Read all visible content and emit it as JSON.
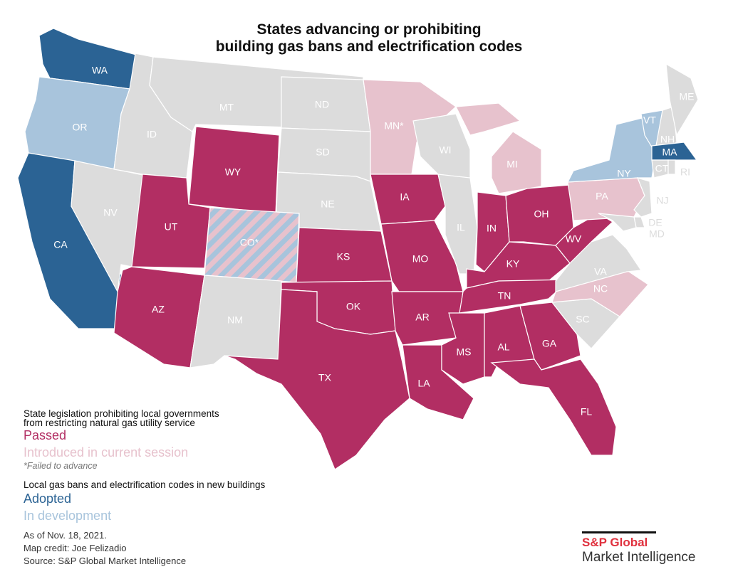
{
  "title": [
    "States advancing or prohibiting",
    "building gas bans and electrification codes"
  ],
  "colors": {
    "passed": "#b22e63",
    "introduced": "#e7c2cd",
    "adopted": "#2b6394",
    "in_development": "#a8c4dc",
    "none": "#dcdcdc"
  },
  "legend": {
    "group1_heading": [
      "State legislation prohibiting local governments",
      "from restricting natural gas utility service"
    ],
    "passed": "Passed",
    "introduced": "Introduced in current session",
    "failed_note": "*Failed to advance",
    "group2_heading": "Local gas bans and electrification codes in new buildings",
    "adopted": "Adopted",
    "in_development": "In development"
  },
  "footer": [
    "As of Nov. 18, 2021.",
    "Map credit: Joe Felizadio",
    "Source: S&P Global Market Intelligence"
  ],
  "logo": {
    "line1": "S&P Global",
    "line2": "Market Intelligence"
  },
  "states": [
    {
      "label": "WA",
      "status": "adopted"
    },
    {
      "label": "OR",
      "status": "in_development"
    },
    {
      "label": "CA",
      "status": "adopted"
    },
    {
      "label": "NV",
      "status": "none"
    },
    {
      "label": "ID",
      "status": "none"
    },
    {
      "label": "MT",
      "status": "none"
    },
    {
      "label": "WY",
      "status": "passed"
    },
    {
      "label": "UT",
      "status": "passed"
    },
    {
      "label": "CO*",
      "status": "introduced_and_in_development"
    },
    {
      "label": "AZ",
      "status": "passed"
    },
    {
      "label": "NM",
      "status": "none"
    },
    {
      "label": "ND",
      "status": "none"
    },
    {
      "label": "SD",
      "status": "none"
    },
    {
      "label": "NE",
      "status": "none"
    },
    {
      "label": "KS",
      "status": "passed"
    },
    {
      "label": "OK",
      "status": "passed"
    },
    {
      "label": "TX",
      "status": "passed"
    },
    {
      "label": "MN*",
      "status": "introduced"
    },
    {
      "label": "IA",
      "status": "passed"
    },
    {
      "label": "MO",
      "status": "passed"
    },
    {
      "label": "AR",
      "status": "passed"
    },
    {
      "label": "LA",
      "status": "passed"
    },
    {
      "label": "WI",
      "status": "none"
    },
    {
      "label": "MI",
      "status": "introduced"
    },
    {
      "label": "IL",
      "status": "none"
    },
    {
      "label": "IN",
      "status": "passed"
    },
    {
      "label": "OH",
      "status": "passed"
    },
    {
      "label": "KY",
      "status": "passed"
    },
    {
      "label": "TN",
      "status": "passed"
    },
    {
      "label": "MS",
      "status": "passed"
    },
    {
      "label": "AL",
      "status": "passed"
    },
    {
      "label": "GA",
      "status": "passed"
    },
    {
      "label": "FL",
      "status": "passed"
    },
    {
      "label": "SC",
      "status": "none"
    },
    {
      "label": "NC",
      "status": "introduced"
    },
    {
      "label": "VA",
      "status": "none"
    },
    {
      "label": "WV",
      "status": "passed"
    },
    {
      "label": "PA",
      "status": "introduced"
    },
    {
      "label": "NY",
      "status": "in_development"
    },
    {
      "label": "VT",
      "status": "in_development"
    },
    {
      "label": "NH",
      "status": "none"
    },
    {
      "label": "ME",
      "status": "none"
    },
    {
      "label": "MA",
      "status": "adopted"
    },
    {
      "label": "CT",
      "status": "none"
    },
    {
      "label": "RI",
      "status": "none"
    },
    {
      "label": "NJ",
      "status": "none"
    },
    {
      "label": "DE",
      "status": "none"
    },
    {
      "label": "MD",
      "status": "none"
    }
  ]
}
